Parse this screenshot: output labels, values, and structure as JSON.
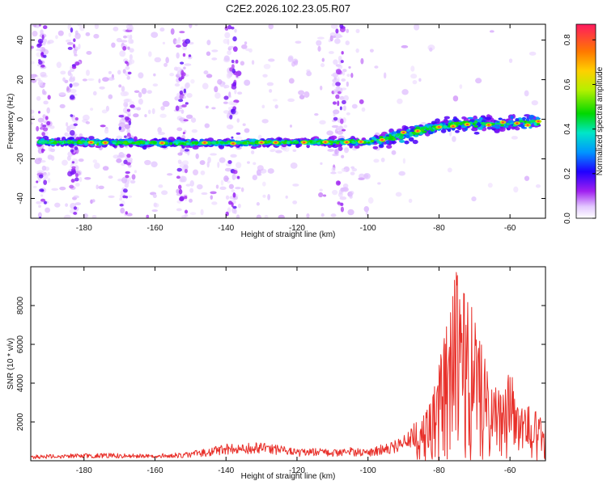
{
  "page": {
    "title": "C2E2.2026.102.23.05.R07"
  },
  "colors": {
    "axis": "#000000",
    "snr_line": "#e8302a",
    "background": "#ffffff"
  },
  "chart_data": [
    {
      "type": "heatmap",
      "title": "C2E2.2026.102.23.05.R07",
      "xlabel": "Height of straight line (km)",
      "ylabel": "Frequency (Hz)",
      "xlim": [
        -195,
        -50
      ],
      "ylim": [
        -50,
        48
      ],
      "x_ticks": [
        -180,
        -160,
        -140,
        -120,
        -100,
        -80,
        -60
      ],
      "y_ticks": [
        -40,
        -20,
        0,
        20,
        40
      ],
      "colorbar": {
        "label": "Normalized spectral amplitude",
        "range": [
          0,
          0.87
        ],
        "ticks": [
          0.0,
          0.2,
          0.4,
          0.6,
          0.8
        ]
      },
      "ridge": [
        {
          "x": -193,
          "y": -11.5
        },
        {
          "x": -180,
          "y": -11.5
        },
        {
          "x": -160,
          "y": -12
        },
        {
          "x": -140,
          "y": -12
        },
        {
          "x": -120,
          "y": -11.5
        },
        {
          "x": -100,
          "y": -11.5
        },
        {
          "x": -97,
          "y": -10.5
        },
        {
          "x": -90,
          "y": -8
        },
        {
          "x": -80,
          "y": -3.5
        },
        {
          "x": -70,
          "y": -2
        },
        {
          "x": -60,
          "y": -2
        },
        {
          "x": -52,
          "y": -1
        }
      ]
    },
    {
      "type": "line",
      "title": "",
      "xlabel": "Height of straight line (km)",
      "ylabel": "SNR (10 * v/v)",
      "xlim": [
        -195,
        -50
      ],
      "ylim": [
        0,
        10000
      ],
      "x_ticks": [
        -180,
        -160,
        -140,
        -120,
        -100,
        -80,
        -60
      ],
      "y_ticks": [
        2000,
        4000,
        6000,
        8000
      ],
      "series": [
        {
          "name": "SNR",
          "x": [
            -195,
            -185,
            -175,
            -165,
            -155,
            -150,
            -145,
            -140,
            -135,
            -130,
            -125,
            -120,
            -115,
            -110,
            -105,
            -100,
            -95,
            -90,
            -87,
            -85,
            -82,
            -80,
            -78,
            -76,
            -75,
            -74,
            -72,
            -70,
            -68,
            -66,
            -64,
            -62,
            -60,
            -58,
            -56,
            -54,
            -52,
            -50
          ],
          "envelope": [
            300,
            350,
            400,
            350,
            400,
            500,
            650,
            900,
            900,
            950,
            800,
            600,
            650,
            600,
            700,
            600,
            900,
            1300,
            2000,
            2200,
            3500,
            5000,
            7000,
            9500,
            10000,
            8500,
            9000,
            7500,
            6000,
            4500,
            4000,
            3500,
            5000,
            3000,
            2600,
            3000,
            2500,
            2000
          ]
        }
      ]
    }
  ]
}
